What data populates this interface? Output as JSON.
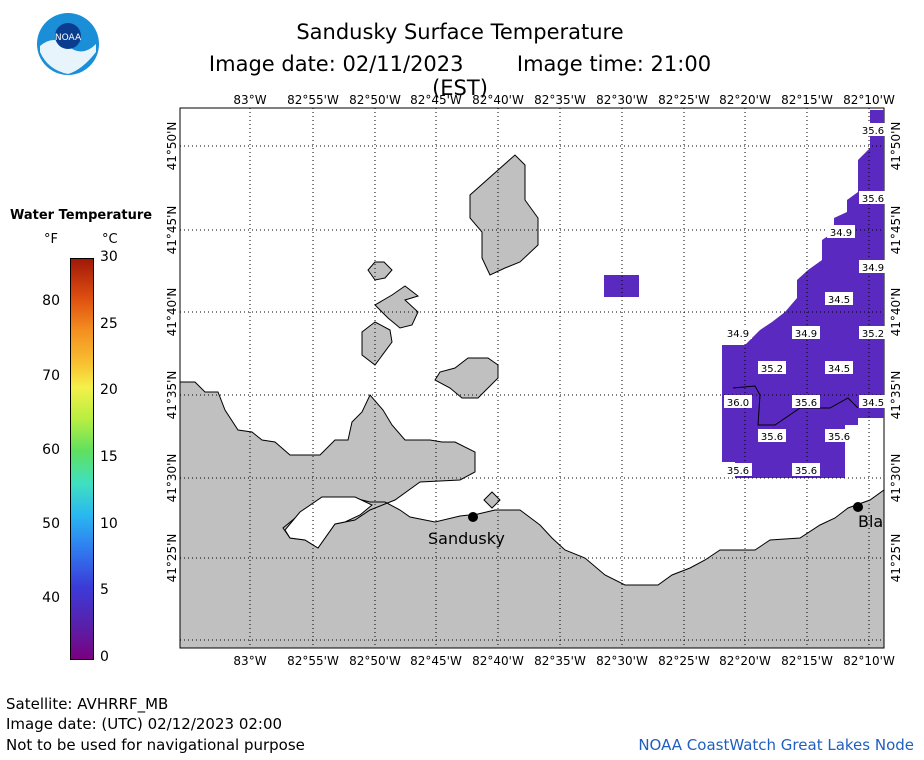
{
  "header": {
    "title": "Sandusky Surface Temperature",
    "subtitle_date": "Image date: 02/11/2023",
    "subtitle_time": "Image time: 21:00 (EST)",
    "logo_text": "NOAA"
  },
  "legend": {
    "title": "Water Temperature",
    "unit_f": "°F",
    "unit_c": "°C",
    "f_ticks": [
      {
        "label": "80",
        "value": 80
      },
      {
        "label": "70",
        "value": 70
      },
      {
        "label": "60",
        "value": 60
      },
      {
        "label": "50",
        "value": 50
      },
      {
        "label": "40",
        "value": 40
      }
    ],
    "c_ticks": [
      {
        "label": "30",
        "value": 30
      },
      {
        "label": "25",
        "value": 25
      },
      {
        "label": "20",
        "value": 20
      },
      {
        "label": "15",
        "value": 15
      },
      {
        "label": "10",
        "value": 10
      },
      {
        "label": "5",
        "value": 5
      },
      {
        "label": "0",
        "value": 0
      }
    ],
    "colors": [
      "#7a0080",
      "#3b3bd8",
      "#29b8f0",
      "#5fe060",
      "#f5f04a",
      "#f49020",
      "#a01808"
    ]
  },
  "map": {
    "lon_labels": [
      "83°W",
      "82°55'W",
      "82°50'W",
      "82°45'W",
      "82°40'W",
      "82°35'W",
      "82°30'W",
      "82°25'W",
      "82°20'W",
      "82°15'W",
      "82°10'W"
    ],
    "lat_labels": [
      "41°50'N",
      "41°45'N",
      "41°40'N",
      "41°35'N",
      "41°30'N",
      "41°25'N"
    ],
    "water_color": "#5a2ac0",
    "land_color": "#c0c0c0",
    "cities": [
      {
        "name": "Sandusky"
      },
      {
        "name": "Bla"
      }
    ],
    "temp_labels": [
      {
        "text": "35.6"
      },
      {
        "text": "35.6"
      },
      {
        "text": "34.9"
      },
      {
        "text": "34.9"
      },
      {
        "text": "34.5"
      },
      {
        "text": "34.9"
      },
      {
        "text": "34.9"
      },
      {
        "text": "35.2"
      },
      {
        "text": "35.2"
      },
      {
        "text": "34.5"
      },
      {
        "text": "36.0"
      },
      {
        "text": "35.6"
      },
      {
        "text": "34.5"
      },
      {
        "text": "35.6"
      },
      {
        "text": "35.6"
      },
      {
        "text": "35.6"
      },
      {
        "text": "35.6"
      }
    ]
  },
  "footer": {
    "satellite": "Satellite: AVHRRF_MB",
    "utc": "Image date: (UTC) 02/12/2023  02:00",
    "warning": "Not to be used for navigational purpose",
    "node": "NOAA CoastWatch Great Lakes Node"
  }
}
